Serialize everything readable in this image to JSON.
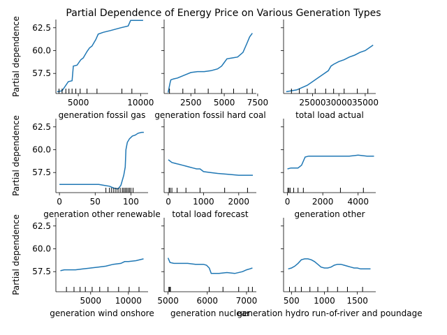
{
  "figure_title": "Partial Dependence of Energy Price on Various Generation Types",
  "colors": {
    "line": "#1f77b4",
    "axis": "#000000",
    "rug": "#000000"
  },
  "y_label": "Partial dependence",
  "y_ticks": [
    57.5,
    60.0,
    62.5
  ],
  "y_tick_labels": [
    "57.5",
    "60.0",
    "62.5"
  ],
  "y_range": [
    55.3,
    63.4
  ],
  "chart_data": [
    {
      "type": "line",
      "xlabel": "generation fossil gas",
      "x_range": [
        3200,
        10600
      ],
      "x_ticks": [
        5000,
        10000
      ],
      "x_tick_labels": [
        "5000",
        "10000"
      ],
      "x": [
        3300,
        3700,
        4200,
        4500,
        4600,
        4900,
        5200,
        5400,
        5700,
        5900,
        6100,
        6400,
        6600,
        7000,
        7600,
        8400,
        9000,
        9200,
        9400,
        10200
      ],
      "y": [
        55.5,
        55.6,
        56.6,
        56.7,
        58.3,
        58.4,
        59.0,
        59.2,
        59.9,
        60.3,
        60.5,
        61.2,
        61.8,
        62.0,
        62.2,
        62.5,
        62.7,
        63.3,
        63.3,
        63.3
      ],
      "rug": [
        3450,
        3700,
        4000,
        4250,
        4500,
        4800,
        5150,
        5700,
        6500,
        8500,
        9300
      ]
    },
    {
      "type": "line",
      "xlabel": "generation fossil hard coal",
      "x_range": [
        500,
        7400
      ],
      "x_ticks": [
        2500,
        5000,
        7500
      ],
      "x_tick_labels": [
        "2500",
        "5000",
        "7500"
      ],
      "x": [
        800,
        950,
        1000,
        1200,
        1500,
        2000,
        2500,
        3000,
        3500,
        4000,
        4500,
        4800,
        5000,
        5200,
        5600,
        6000,
        6400,
        6700,
        6900,
        7100
      ],
      "y": [
        55.4,
        56.5,
        56.8,
        56.9,
        57.0,
        57.3,
        57.6,
        57.7,
        57.7,
        57.8,
        58.0,
        58.3,
        58.7,
        59.1,
        59.2,
        59.3,
        59.8,
        60.8,
        61.5,
        61.9
      ],
      "rug": [
        900,
        1900,
        2800,
        3800,
        4800,
        5700,
        6700,
        7100
      ]
    },
    {
      "type": "line",
      "xlabel": "total load actual",
      "x_range": [
        19500,
        37000
      ],
      "x_ticks": [
        25000,
        30000,
        35000
      ],
      "x_tick_labels": [
        "25000",
        "30000",
        "35000"
      ],
      "x": [
        20000,
        22000,
        24000,
        25000,
        26000,
        27000,
        28000,
        28500,
        29000,
        30000,
        31000,
        32000,
        33000,
        34000,
        35000,
        36500
      ],
      "y": [
        55.5,
        55.7,
        56.2,
        56.6,
        57.0,
        57.4,
        57.8,
        58.3,
        58.5,
        58.8,
        59.0,
        59.3,
        59.5,
        59.8,
        60.0,
        60.6
      ],
      "rug": [
        21000,
        22500,
        24000,
        25500,
        27500,
        29000,
        31000,
        33500,
        35500
      ]
    },
    {
      "type": "line",
      "xlabel": "generation other renewable",
      "x_range": [
        -5,
        124
      ],
      "x_ticks": [
        0,
        50,
        100
      ],
      "x_tick_labels": [
        "0",
        "50",
        "100"
      ],
      "x": [
        0,
        20,
        40,
        55,
        62,
        70,
        76,
        82,
        86,
        90,
        92,
        93,
        95,
        98,
        102,
        106,
        110,
        115,
        118
      ],
      "y": [
        56.2,
        56.2,
        56.2,
        56.2,
        56.1,
        56.0,
        55.8,
        55.7,
        56.1,
        57.2,
        58.1,
        60.0,
        60.8,
        61.2,
        61.5,
        61.6,
        61.8,
        61.9,
        61.9
      ],
      "rug": [
        65,
        70,
        73,
        76,
        79,
        82,
        85,
        88,
        90,
        92,
        94,
        96,
        98,
        100,
        103
      ]
    },
    {
      "type": "line",
      "xlabel": "total load forecast",
      "x_range": [
        -120,
        2500
      ],
      "x_ticks": [
        0,
        1000,
        2000
      ],
      "x_tick_labels": [
        "0",
        "1000",
        "2000"
      ],
      "x": [
        0,
        100,
        200,
        300,
        400,
        500,
        600,
        700,
        800,
        900,
        1000,
        1200,
        1400,
        1700,
        2000,
        2300,
        2400
      ],
      "y": [
        58.9,
        58.6,
        58.5,
        58.4,
        58.3,
        58.2,
        58.1,
        58.0,
        57.9,
        57.9,
        57.6,
        57.5,
        57.4,
        57.3,
        57.2,
        57.2,
        57.2
      ],
      "rug": [
        20,
        50,
        100,
        250,
        500,
        900,
        1600,
        2250
      ]
    },
    {
      "type": "line",
      "xlabel": "generation other",
      "x_range": [
        -220,
        5000
      ],
      "x_ticks": [
        0,
        2000,
        4000
      ],
      "x_tick_labels": [
        "0",
        "2000",
        "4000"
      ],
      "x": [
        0,
        200,
        400,
        600,
        800,
        1000,
        1200,
        1500,
        2000,
        2500,
        3000,
        3500,
        4000,
        4500,
        4900
      ],
      "y": [
        57.9,
        58.0,
        58.0,
        58.0,
        58.3,
        59.2,
        59.3,
        59.3,
        59.3,
        59.3,
        59.3,
        59.3,
        59.4,
        59.3,
        59.3
      ],
      "rug": [
        20,
        80,
        150,
        350,
        600,
        900,
        3000,
        4300
      ]
    },
    {
      "type": "line",
      "xlabel": "generation wind onshore",
      "x_range": [
        400,
        12600
      ],
      "x_ticks": [
        5000,
        10000
      ],
      "x_tick_labels": [
        "5000",
        "10000"
      ],
      "x": [
        1000,
        1500,
        2000,
        3000,
        4000,
        5000,
        6000,
        7000,
        8000,
        9000,
        9500,
        10000,
        11000,
        12000
      ],
      "y": [
        57.6,
        57.7,
        57.7,
        57.7,
        57.8,
        57.9,
        58.0,
        58.1,
        58.3,
        58.4,
        58.6,
        58.6,
        58.7,
        58.9
      ],
      "rug": [
        1800,
        2800,
        3600,
        4300,
        5200,
        6200,
        7300,
        8700,
        10100,
        11400
      ]
    },
    {
      "type": "line",
      "xlabel": "generation nuclear",
      "x_range": [
        4900,
        7250
      ],
      "x_ticks": [
        5000,
        6000,
        7000
      ],
      "x_tick_labels": [
        "5000",
        "6000",
        "7000"
      ],
      "x": [
        5000,
        5050,
        5150,
        5300,
        5500,
        5700,
        5900,
        5980,
        6050,
        6100,
        6300,
        6500,
        6700,
        6900,
        7000,
        7080,
        7150
      ],
      "y": [
        59.0,
        58.5,
        58.4,
        58.4,
        58.4,
        58.3,
        58.3,
        58.2,
        57.9,
        57.3,
        57.3,
        57.4,
        57.3,
        57.5,
        57.7,
        57.8,
        57.9
      ],
      "rug": [
        5020,
        5040,
        5060,
        6050,
        6400,
        6800,
        7050,
        7150
      ]
    },
    {
      "type": "line",
      "xlabel": "generation hydro run-of-river and poundage",
      "x_range": [
        380,
        1780
      ],
      "x_ticks": [
        500,
        1000,
        1500
      ],
      "x_tick_labels": [
        "500",
        "1000",
        "1500"
      ],
      "x": [
        450,
        500,
        550,
        600,
        650,
        700,
        750,
        800,
        850,
        900,
        950,
        1000,
        1050,
        1100,
        1150,
        1200,
        1250,
        1300,
        1350,
        1400,
        1450,
        1500,
        1550,
        1600,
        1650,
        1700
      ],
      "y": [
        57.8,
        57.9,
        58.1,
        58.4,
        58.8,
        58.9,
        58.9,
        58.8,
        58.6,
        58.3,
        58.0,
        57.9,
        57.9,
        58.0,
        58.2,
        58.3,
        58.3,
        58.2,
        58.1,
        58.0,
        57.9,
        57.9,
        57.8,
        57.8,
        57.8,
        57.8
      ],
      "rug": [
        470,
        560,
        650,
        780,
        900,
        1050,
        1200,
        1350,
        1580
      ]
    }
  ]
}
